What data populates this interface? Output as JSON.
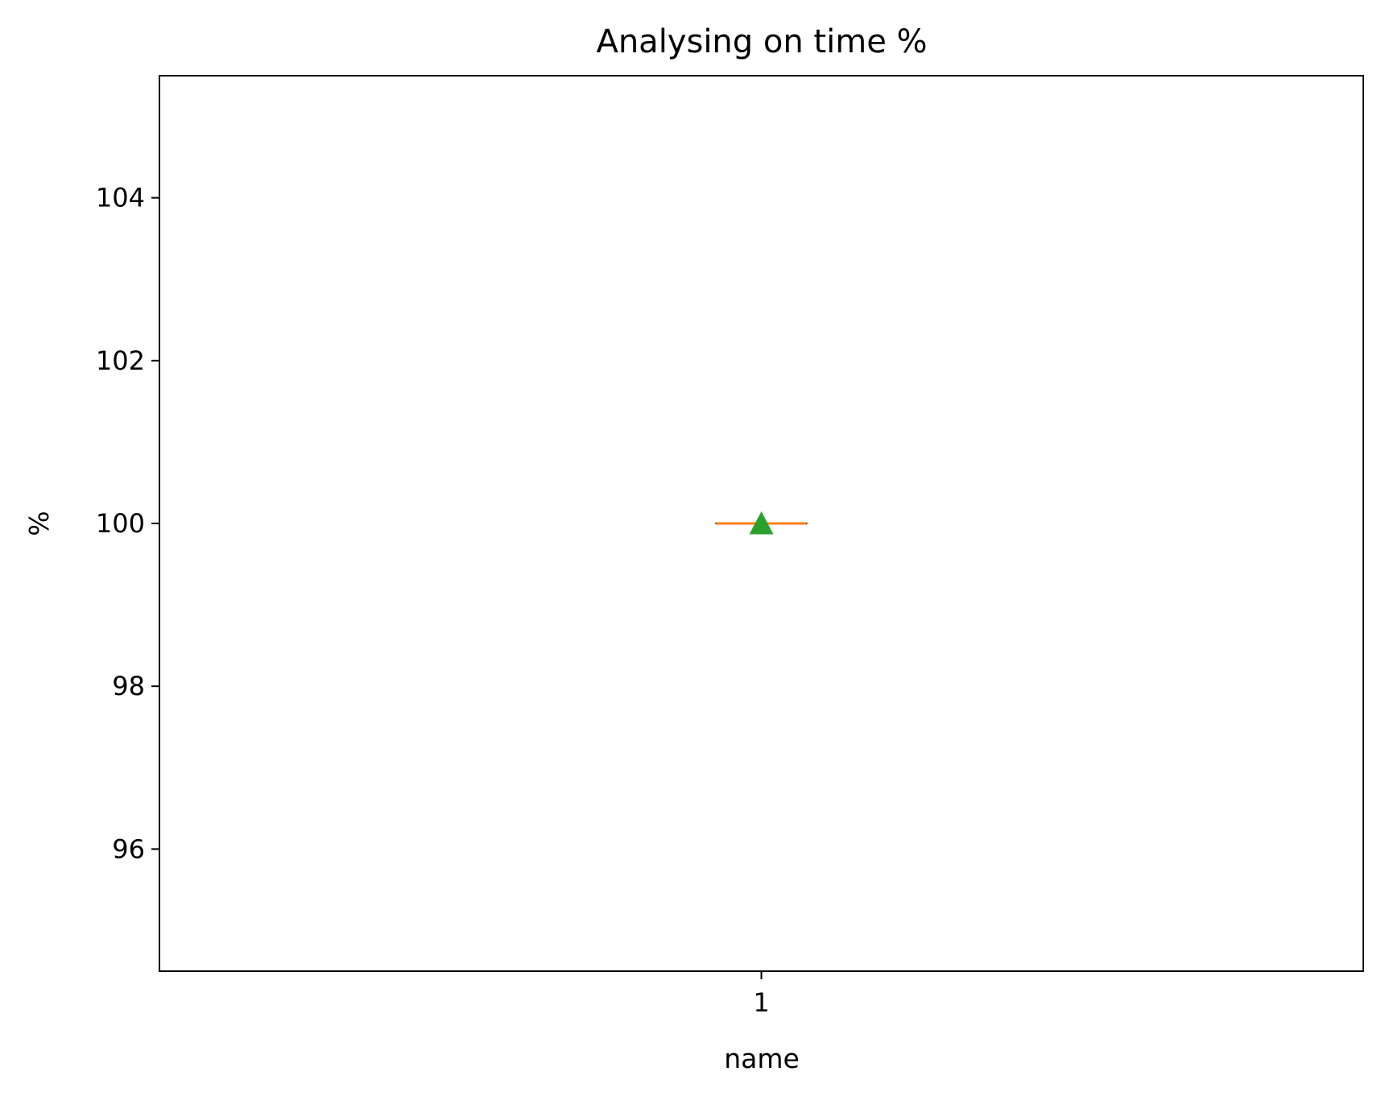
{
  "chart_data": {
    "type": "box",
    "title": "Analysing on time %",
    "xlabel": "name",
    "ylabel": "%",
    "categories": [
      "1"
    ],
    "ylim": [
      94.5,
      105.5
    ],
    "yticks": [
      96,
      98,
      100,
      102,
      104
    ],
    "boxes": [
      {
        "category": "1",
        "whisker_low": 100,
        "q1": 100,
        "median": 100,
        "q3": 100,
        "whisker_high": 100,
        "mean": 100
      }
    ],
    "grid": false,
    "colors": {
      "median": "#ff7f0e",
      "mean": "#2ca02c",
      "box": "#000000"
    }
  }
}
